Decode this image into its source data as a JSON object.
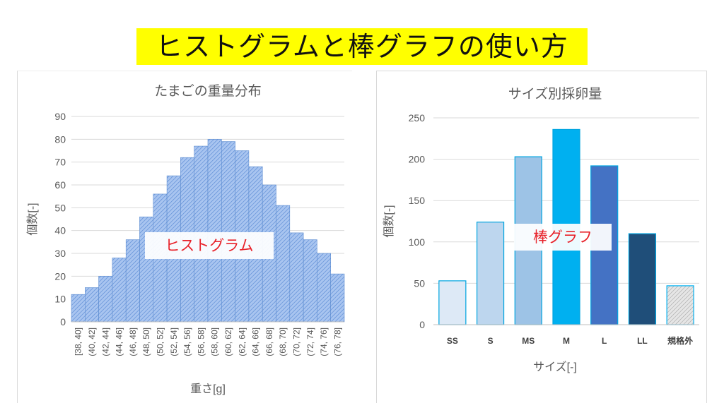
{
  "page_title": "ヒストグラムと棒グラフの使い方",
  "chart_data": [
    {
      "type": "bar",
      "variant": "histogram",
      "title": "たまごの重量分布",
      "xlabel": "重さ[g]",
      "ylabel": "個数[-]",
      "ylim": [
        0,
        90
      ],
      "yticks": [
        0,
        10,
        20,
        30,
        40,
        50,
        60,
        70,
        80,
        90
      ],
      "grid": true,
      "categories": [
        "[38, 40]",
        "(40, 42]",
        "(42, 44]",
        "(44, 46]",
        "(46, 48]",
        "(48, 50]",
        "(50, 52]",
        "(52, 54]",
        "(54, 56]",
        "(56, 58]",
        "(58, 60]",
        "(60, 62]",
        "(62, 64]",
        "(64, 66]",
        "(66, 68]",
        "(68, 70]",
        "(70, 72]",
        "(72, 74]",
        "(74, 76]",
        "(76, 78]"
      ],
      "values": [
        12,
        15,
        20,
        28,
        36,
        46,
        56,
        64,
        72,
        77,
        80,
        79,
        75,
        68,
        60,
        51,
        39,
        36,
        30,
        21
      ],
      "annotation": "ヒストグラム",
      "colors": {
        "fill": "#8fb4ea",
        "hatch": "#5f8ed6",
        "stroke": "#5b8bd0"
      }
    },
    {
      "type": "bar",
      "title": "サイズ別採卵量",
      "xlabel": "サイズ[-]",
      "ylabel": "個数[-]",
      "ylim": [
        0,
        250
      ],
      "yticks": [
        0,
        50,
        100,
        150,
        200,
        250
      ],
      "grid": true,
      "categories": [
        "SS",
        "S",
        "MS",
        "M",
        "L",
        "LL",
        "規格外"
      ],
      "values": [
        53,
        124,
        203,
        236,
        192,
        110,
        47
      ],
      "annotation": "棒グラフ",
      "colors": [
        "#dde9f6",
        "#bdd6ee",
        "#9dc3e6",
        "#00b0f0",
        "#4472c4",
        "#1f4e79",
        "#d9d9d9"
      ]
    }
  ]
}
